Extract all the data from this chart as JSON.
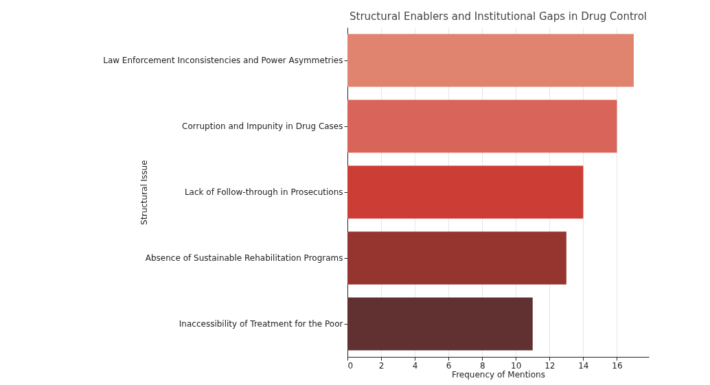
{
  "chart_data": {
    "type": "bar",
    "orientation": "horizontal",
    "title": "Structural Enablers and Institutional Gaps in Drug Control",
    "xlabel": "Frequency of Mentions",
    "ylabel": "Structural Issue",
    "categories": [
      "Law Enforcement Inconsistencies and Power Asymmetries",
      "Corruption and Impunity in Drug Cases",
      "Lack of Follow-through in Prosecutions",
      "Absence of Sustainable Rehabilitation Programs",
      "Inaccessibility of Treatment for the Poor"
    ],
    "values": [
      17,
      16,
      14,
      13,
      11
    ],
    "colors": [
      "#e08470",
      "#d9645a",
      "#cc3d36",
      "#963530",
      "#613030"
    ],
    "xlim": [
      0,
      17.9
    ],
    "xticks": [
      0,
      2,
      4,
      6,
      8,
      10,
      12,
      14,
      16
    ],
    "grid": "x"
  }
}
